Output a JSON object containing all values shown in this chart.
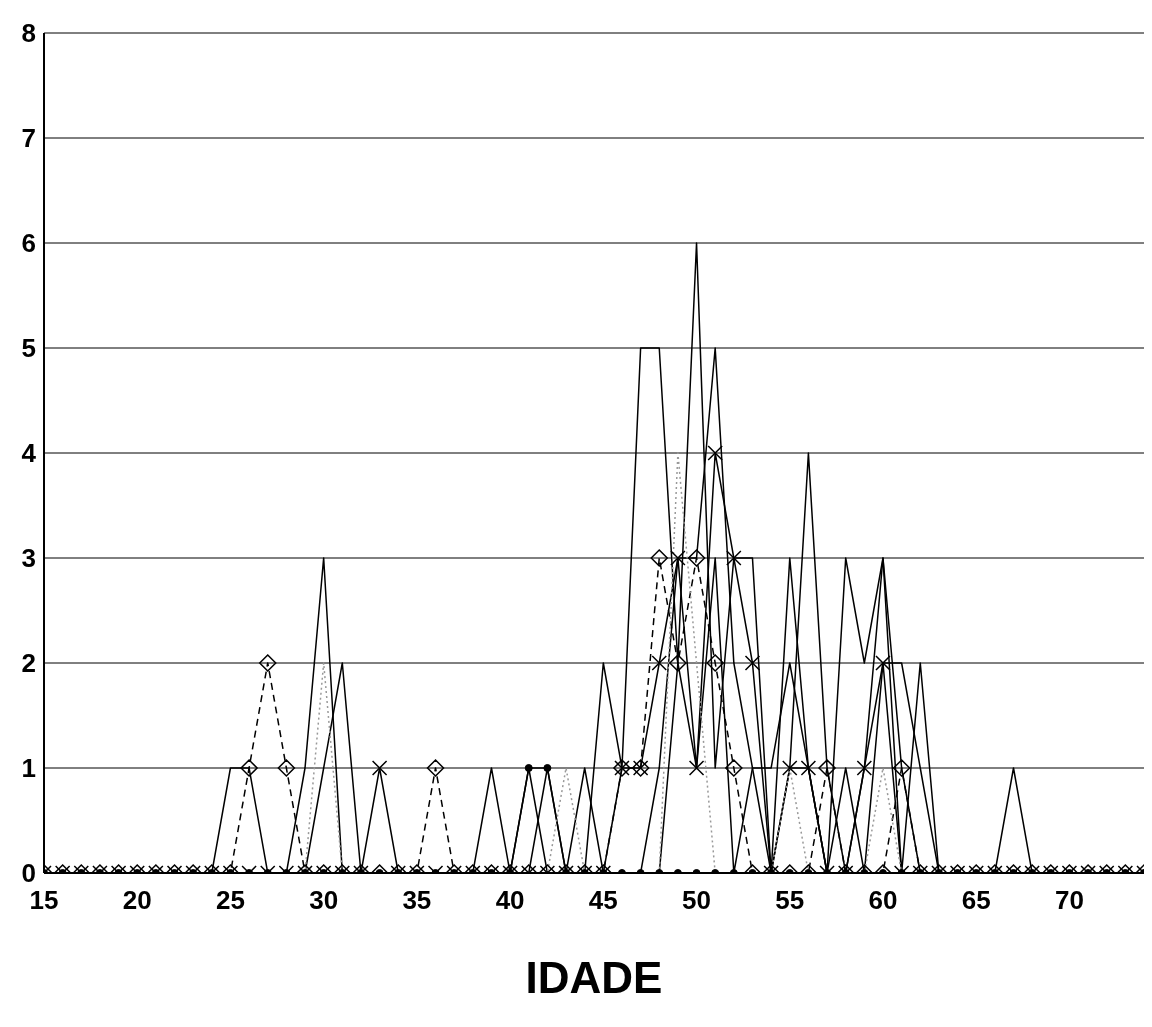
{
  "chart_data": {
    "type": "line",
    "xlabel": "IDADE",
    "x": [
      15,
      16,
      17,
      18,
      19,
      20,
      21,
      22,
      23,
      24,
      25,
      26,
      27,
      28,
      29,
      30,
      31,
      32,
      33,
      34,
      35,
      36,
      37,
      38,
      39,
      40,
      41,
      42,
      43,
      44,
      45,
      46,
      47,
      48,
      49,
      50,
      51,
      52,
      53,
      54,
      55,
      56,
      57,
      58,
      59,
      60,
      61,
      62,
      63,
      64,
      65,
      66,
      67,
      68,
      69,
      70,
      71,
      72,
      73,
      74
    ],
    "xlim": [
      15,
      74
    ],
    "xticks": [
      15,
      20,
      25,
      30,
      35,
      40,
      45,
      50,
      55,
      60,
      65,
      70
    ],
    "ylim": [
      0,
      8
    ],
    "yticks": [
      0,
      1,
      2,
      3,
      4,
      5,
      6,
      7,
      8
    ],
    "grid": "y",
    "legend": false,
    "series": [
      {
        "color": "#000000",
        "marker": "cross",
        "line_style": "solid",
        "values": [
          0,
          0,
          0,
          0,
          0,
          0,
          0,
          0,
          0,
          0,
          0,
          0,
          0,
          0,
          0,
          0,
          0,
          0,
          1,
          0,
          0,
          0,
          0,
          0,
          0,
          0,
          0,
          0,
          0,
          0,
          0,
          1,
          1,
          2,
          3,
          1,
          4,
          3,
          2,
          0,
          1,
          1,
          0,
          0,
          1,
          2,
          0,
          0,
          0,
          0,
          0,
          0,
          0,
          0,
          0,
          0,
          0,
          0,
          0,
          0
        ]
      },
      {
        "color": "#000000",
        "marker": "diamond",
        "line_style": "dashed",
        "values": [
          0,
          0,
          0,
          0,
          0,
          0,
          0,
          0,
          0,
          0,
          0,
          1,
          2,
          1,
          0,
          0,
          0,
          0,
          0,
          0,
          0,
          1,
          0,
          0,
          0,
          0,
          0,
          0,
          0,
          0,
          0,
          1,
          1,
          3,
          2,
          3,
          2,
          1,
          0,
          0,
          0,
          0,
          1,
          0,
          0,
          0,
          1,
          0,
          0,
          0,
          0,
          0,
          0,
          0,
          0,
          0,
          0,
          0,
          0,
          0
        ]
      },
      {
        "color": "#000000",
        "marker": "circle",
        "line_style": "solid",
        "values": [
          0,
          0,
          0,
          0,
          0,
          0,
          0,
          0,
          0,
          0,
          0,
          0,
          0,
          0,
          0,
          0,
          0,
          0,
          0,
          0,
          0,
          0,
          0,
          0,
          0,
          0,
          1,
          1,
          0,
          0,
          0,
          0,
          0,
          0,
          0,
          0,
          0,
          0,
          0,
          0,
          0,
          0,
          0,
          0,
          0,
          0,
          0,
          0,
          0,
          0,
          0,
          0,
          0,
          0,
          0,
          0,
          0,
          0,
          0,
          0
        ]
      },
      {
        "color": "#000000",
        "marker": "none",
        "line_style": "solid",
        "values": [
          0,
          0,
          0,
          0,
          0,
          0,
          0,
          0,
          0,
          0,
          1,
          1,
          0,
          0,
          0,
          0,
          0,
          0,
          0,
          0,
          0,
          0,
          0,
          0,
          1,
          0,
          0,
          0,
          0,
          0,
          2,
          1,
          5,
          5,
          2,
          6,
          1,
          3,
          3,
          0,
          3,
          1,
          0,
          3,
          2,
          3,
          0,
          2,
          0,
          0,
          0,
          0,
          1,
          0,
          0,
          0,
          0,
          0,
          0,
          0
        ]
      },
      {
        "color": "#000000",
        "marker": "none",
        "line_style": "solid",
        "values": [
          0,
          0,
          0,
          0,
          0,
          0,
          0,
          0,
          0,
          0,
          0,
          0,
          0,
          0,
          1,
          3,
          0,
          0,
          0,
          0,
          0,
          0,
          0,
          0,
          0,
          0,
          0,
          1,
          0,
          1,
          0,
          0,
          0,
          1,
          3,
          3,
          5,
          2,
          1,
          0,
          1,
          4,
          1,
          0,
          1,
          3,
          1,
          0,
          0,
          0,
          0,
          0,
          0,
          0,
          0,
          0,
          0,
          0,
          0,
          0
        ]
      },
      {
        "color": "#000000",
        "marker": "none",
        "line_style": "solid",
        "values": [
          0,
          0,
          0,
          0,
          0,
          0,
          0,
          0,
          0,
          0,
          0,
          0,
          0,
          0,
          0,
          1,
          2,
          0,
          0,
          0,
          0,
          0,
          0,
          0,
          0,
          0,
          1,
          0,
          0,
          0,
          0,
          0,
          0,
          0,
          2,
          1,
          3,
          0,
          1,
          1,
          2,
          1,
          0,
          1,
          0,
          2,
          2,
          1,
          0,
          0,
          0,
          0,
          0,
          0,
          0,
          0,
          0,
          0,
          0,
          0
        ]
      },
      {
        "color": "#999999",
        "marker": "none",
        "line_style": "dotted",
        "values": [
          0,
          0,
          0,
          0,
          0,
          0,
          0,
          0,
          0,
          0,
          0,
          0,
          0,
          0,
          0,
          2,
          0,
          0,
          0,
          0,
          0,
          0,
          0,
          0,
          0,
          0,
          0,
          0,
          1,
          0,
          0,
          0,
          0,
          0,
          4,
          2,
          0,
          0,
          0,
          0,
          1,
          0,
          0,
          0,
          0,
          1,
          0,
          0,
          0,
          0,
          0,
          0,
          0,
          0,
          0,
          0,
          0,
          0,
          0,
          0
        ]
      }
    ]
  }
}
